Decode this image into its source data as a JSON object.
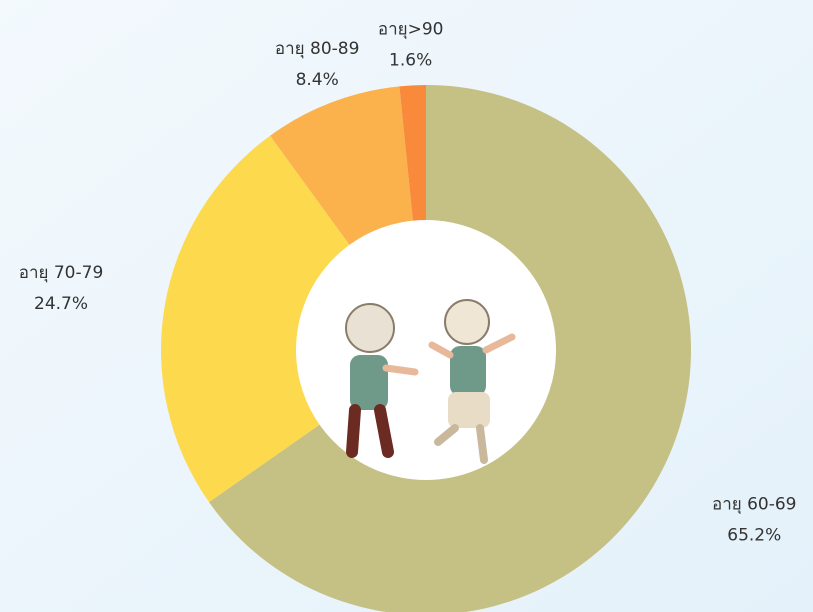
{
  "chart_data": {
    "type": "donut",
    "categories": [
      "อายุ 60-69",
      "อายุ 70-79",
      "อายุ 80-89",
      "อายุ>90"
    ],
    "values": [
      65.2,
      24.7,
      8.4,
      1.6
    ],
    "value_labels": [
      "65.2%",
      "24.7%",
      "8.4%",
      "1.6%"
    ],
    "colors": [
      "#c5c084",
      "#fdd94e",
      "#fbb24c",
      "#f98a3c"
    ]
  }
}
